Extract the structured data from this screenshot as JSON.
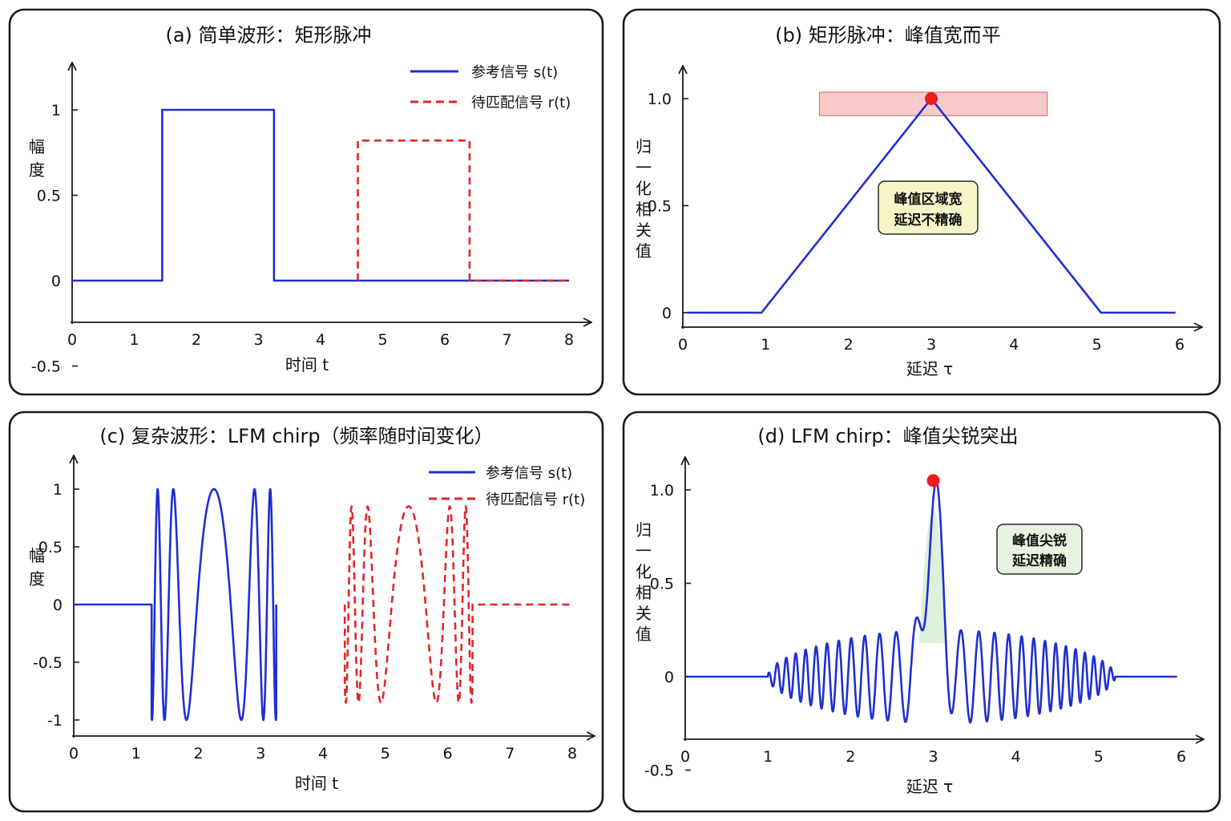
{
  "chart_data": [
    {
      "id": "a",
      "type": "line",
      "title": "(a) 简单波形：矩形脉冲",
      "xlabel": "时间 t",
      "ylabel": "幅度",
      "xlim": [
        0,
        8
      ],
      "ylim": [
        -0.5,
        1.2
      ],
      "xticks": [
        "0",
        "1",
        "2",
        "3",
        "4",
        "5",
        "6",
        "7",
        "8"
      ],
      "yticks": [
        {
          "value": 1,
          "label": "1"
        },
        {
          "value": 0.5,
          "label": "0.5"
        },
        {
          "value": 0,
          "label": "0"
        },
        {
          "value": -0.5,
          "label": "-0.5"
        }
      ],
      "legend_position": "top-right",
      "series": [
        {
          "name": "参考信号 s(t)",
          "style": "solid",
          "color": "#1f2fd0",
          "points": [
            [
              0,
              0
            ],
            [
              1.45,
              0
            ],
            [
              1.45,
              1
            ],
            [
              3.25,
              1
            ],
            [
              3.25,
              0
            ],
            [
              8,
              0
            ]
          ]
        },
        {
          "name": "待匹配信号 r(t)",
          "style": "dashed",
          "color": "#e0262b",
          "points": [
            [
              4.6,
              0
            ],
            [
              4.6,
              0.82
            ],
            [
              6.4,
              0.82
            ],
            [
              6.4,
              0
            ],
            [
              8,
              0
            ]
          ]
        }
      ]
    },
    {
      "id": "b",
      "type": "line",
      "title": "(b) 矩形脉冲：峰值宽而平",
      "xlabel": "延迟 τ",
      "ylabel": "归一化相关值",
      "xlim": [
        0,
        6
      ],
      "ylim": [
        -0.06,
        1.1
      ],
      "xticks": [
        "0",
        "1",
        "2",
        "3",
        "4",
        "5",
        "6"
      ],
      "yticks": [
        {
          "value": 1.0,
          "label": "1.0"
        },
        {
          "value": 0.5,
          "label": "0.5"
        },
        {
          "value": 0,
          "label": "0"
        }
      ],
      "series": [
        {
          "name": "",
          "style": "solid",
          "color": "#1f2fd0",
          "points": [
            [
              0.05,
              0
            ],
            [
              0.95,
              0
            ],
            [
              3.0,
              1.0
            ],
            [
              5.05,
              0
            ],
            [
              5.95,
              0
            ]
          ]
        }
      ],
      "peak": {
        "x": 3.0,
        "y": 1.0
      },
      "band": {
        "x_from": 1.65,
        "x_to": 4.4,
        "y_from": 0.92,
        "y_to": 1.03
      },
      "note": [
        "峰值区域宽",
        "延迟不精确"
      ]
    },
    {
      "id": "c",
      "type": "line",
      "title": "(c) 复杂波形：LFM chirp（频率随时间变化）",
      "xlabel": "时间 t",
      "ylabel": "幅度",
      "xlim": [
        0,
        8
      ],
      "ylim": [
        -1.1,
        1.2
      ],
      "xticks": [
        "0",
        "1",
        "2",
        "3",
        "4",
        "5",
        "6",
        "7",
        "8"
      ],
      "yticks": [
        {
          "value": 1,
          "label": "1"
        },
        {
          "value": 0.5,
          "label": "0.5"
        },
        {
          "value": 0,
          "label": "0"
        },
        {
          "value": -0.5,
          "label": "-0.5"
        },
        {
          "value": -1,
          "label": "-1"
        }
      ],
      "legend_position": "top-right",
      "series": [
        {
          "name": "参考信号 s(t)",
          "style": "solid",
          "color": "#1f2fd0",
          "start": 1.25,
          "end": 3.25,
          "amplitude": 1.0,
          "f_edge": 6.0,
          "f_mid": 0.8
        },
        {
          "name": "待匹配信号 r(t)",
          "style": "dashed",
          "color": "#e0262b",
          "start": 4.35,
          "end": 6.4,
          "amplitude": 0.85,
          "f_edge": 6.0,
          "f_mid": 0.8
        }
      ]
    },
    {
      "id": "d",
      "type": "line",
      "title": "(d) LFM chirp：峰值尖锐突出",
      "xlabel": "延迟 τ",
      "ylabel": "归一化相关值",
      "xlim": [
        0,
        6
      ],
      "ylim": [
        -0.6,
        1.15
      ],
      "xticks": [
        "0",
        "1",
        "2",
        "3",
        "4",
        "5",
        "6"
      ],
      "yticks": [
        {
          "value": 1.0,
          "label": "1.0"
        },
        {
          "value": 0.5,
          "label": "0.5"
        },
        {
          "value": 0,
          "label": "0"
        },
        {
          "value": -0.5,
          "label": "-0.5"
        }
      ],
      "series": [
        {
          "name": "",
          "style": "solid",
          "color": "#1f2fd0",
          "support": [
            1.0,
            5.2
          ],
          "center": 3.0,
          "peak_width": 0.09,
          "sidelobe_amplitude": 0.25
        }
      ],
      "peak": {
        "x": 3.0,
        "y": 1.05
      },
      "note": [
        "峰值尖锐",
        "延迟精确"
      ]
    }
  ]
}
